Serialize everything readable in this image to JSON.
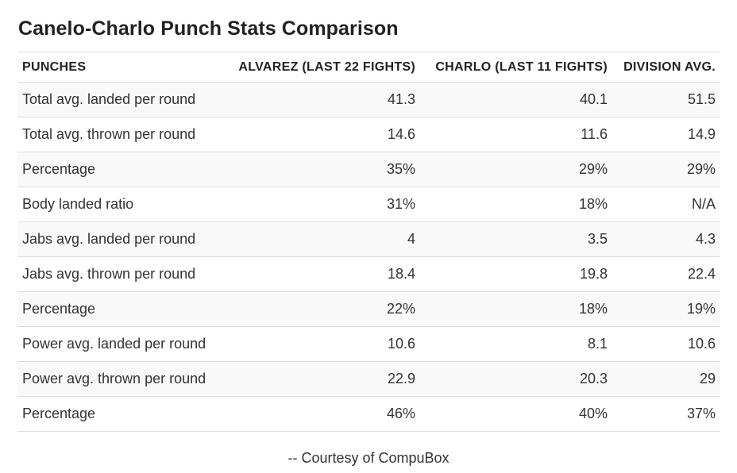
{
  "title": "Canelo-Charlo Punch Stats Comparison",
  "table": {
    "headers": [
      "PUNCHES",
      "ALVAREZ (LAST 22 FIGHTS)",
      "CHARLO (LAST 11 FIGHTS)",
      "DIVISION AVG."
    ],
    "rows": [
      [
        "Total avg. landed per round",
        "41.3",
        "40.1",
        "51.5"
      ],
      [
        "Total avg. thrown per round",
        "14.6",
        "11.6",
        "14.9"
      ],
      [
        "Percentage",
        "35%",
        "29%",
        "29%"
      ],
      [
        "Body landed ratio",
        "31%",
        "18%",
        "N/A"
      ],
      [
        "Jabs avg. landed per round",
        "4",
        "3.5",
        "4.3"
      ],
      [
        "Jabs avg. thrown per round",
        "18.4",
        "19.8",
        "22.4"
      ],
      [
        "Percentage",
        "22%",
        "18%",
        "19%"
      ],
      [
        "Power avg. landed per round",
        "10.6",
        "8.1",
        "10.6"
      ],
      [
        "Power avg. thrown per round",
        "22.9",
        "20.3",
        "29"
      ],
      [
        "Percentage",
        "46%",
        "40%",
        "37%"
      ]
    ]
  },
  "credit": "-- Courtesy of CompuBox",
  "colors": {
    "text": "#333333",
    "heading": "#222222",
    "stripe": "#f9f9f9",
    "border": "#dddddd"
  }
}
